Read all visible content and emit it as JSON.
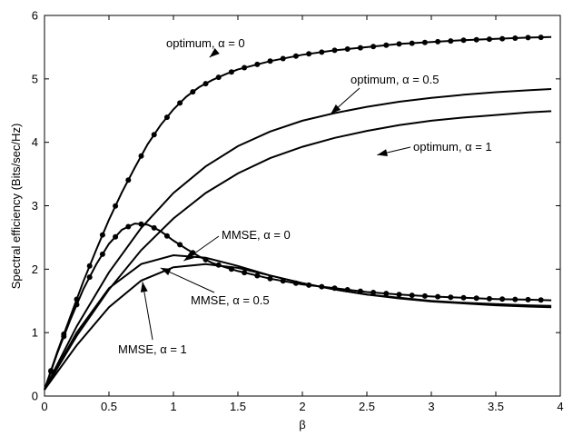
{
  "chart_data": {
    "type": "line",
    "title": "",
    "xlabel": "β",
    "ylabel": "Spectral efficiency (Bits/sec/Hz)",
    "xlim": [
      0,
      4
    ],
    "ylim": [
      0,
      6
    ],
    "x_ticks": [
      "0",
      "0.5",
      "1",
      "1.5",
      "2",
      "2.5",
      "3",
      "3.5",
      "4"
    ],
    "y_ticks": [
      "0",
      "1",
      "2",
      "3",
      "4",
      "5",
      "6"
    ],
    "grid": false,
    "colors": {
      "line": "#000000",
      "marker": "#000000",
      "background": "#ffffff"
    },
    "series": [
      {
        "name": "optimum, α = 0",
        "x": [
          0,
          0.1,
          0.2,
          0.3,
          0.4,
          0.5,
          0.6,
          0.7,
          0.8,
          0.9,
          1.0,
          1.1,
          1.2,
          1.3,
          1.4,
          1.5,
          1.75,
          2.0,
          2.25,
          2.5,
          2.75,
          3.0,
          3.25,
          3.5,
          3.75,
          3.93
        ],
        "y": [
          0.1,
          0.7,
          1.25,
          1.8,
          2.3,
          2.78,
          3.21,
          3.6,
          3.97,
          4.27,
          4.52,
          4.72,
          4.87,
          4.98,
          5.07,
          5.15,
          5.28,
          5.38,
          5.45,
          5.5,
          5.55,
          5.58,
          5.61,
          5.63,
          5.65,
          5.66
        ],
        "markers": true
      },
      {
        "name": "optimum, α = 0.5",
        "x": [
          0,
          0.25,
          0.5,
          0.75,
          1.0,
          1.25,
          1.5,
          1.75,
          2.0,
          2.25,
          2.5,
          2.75,
          3.0,
          3.25,
          3.5,
          3.75,
          3.93
        ],
        "y": [
          0.1,
          1.1,
          1.95,
          2.65,
          3.2,
          3.62,
          3.94,
          4.17,
          4.34,
          4.46,
          4.56,
          4.64,
          4.7,
          4.75,
          4.79,
          4.82,
          4.84
        ],
        "markers": false
      },
      {
        "name": "optimum, α = 1",
        "x": [
          0,
          0.25,
          0.5,
          0.75,
          1.0,
          1.25,
          1.5,
          1.75,
          2.0,
          2.25,
          2.5,
          2.75,
          3.0,
          3.25,
          3.5,
          3.75,
          3.93
        ],
        "y": [
          0.1,
          0.95,
          1.68,
          2.3,
          2.8,
          3.2,
          3.51,
          3.75,
          3.93,
          4.07,
          4.18,
          4.27,
          4.34,
          4.39,
          4.43,
          4.47,
          4.49
        ],
        "markers": false
      },
      {
        "name": "MMSE, α = 0",
        "x": [
          0,
          0.1,
          0.2,
          0.3,
          0.4,
          0.5,
          0.6,
          0.7,
          0.8,
          0.9,
          1.0,
          1.1,
          1.2,
          1.3,
          1.4,
          1.5,
          1.75,
          2.0,
          2.25,
          2.5,
          2.75,
          3.0,
          3.25,
          3.5,
          3.75,
          3.93
        ],
        "y": [
          0.1,
          0.68,
          1.2,
          1.68,
          2.07,
          2.4,
          2.62,
          2.72,
          2.7,
          2.6,
          2.45,
          2.32,
          2.2,
          2.1,
          2.03,
          1.97,
          1.85,
          1.76,
          1.7,
          1.64,
          1.6,
          1.57,
          1.55,
          1.53,
          1.52,
          1.51
        ],
        "markers": true
      },
      {
        "name": "MMSE, α = 0.5",
        "x": [
          0,
          0.25,
          0.5,
          0.75,
          1.0,
          1.25,
          1.5,
          1.75,
          2.0,
          2.25,
          2.5,
          2.75,
          3.0,
          3.25,
          3.5,
          3.75,
          3.93
        ],
        "y": [
          0.1,
          1.0,
          1.7,
          2.08,
          2.22,
          2.18,
          2.05,
          1.9,
          1.78,
          1.68,
          1.6,
          1.55,
          1.5,
          1.47,
          1.45,
          1.43,
          1.42
        ],
        "markers": false
      },
      {
        "name": "MMSE, α = 1",
        "x": [
          0,
          0.25,
          0.5,
          0.75,
          1.0,
          1.25,
          1.5,
          1.75,
          2.0,
          2.25,
          2.5,
          2.75,
          3.0,
          3.25,
          3.5,
          3.75,
          3.93
        ],
        "y": [
          0.1,
          0.8,
          1.4,
          1.82,
          2.03,
          2.08,
          2.02,
          1.9,
          1.78,
          1.68,
          1.6,
          1.54,
          1.49,
          1.46,
          1.43,
          1.41,
          1.4
        ],
        "markers": false
      }
    ],
    "annotations": [
      {
        "id": "ann-opt0",
        "text": "optimum, α = 0",
        "arrow_to": [
          1.28,
          5.34
        ]
      },
      {
        "id": "ann-opt05",
        "text": "optimum, α = 0.5",
        "arrow_to": [
          2.22,
          4.45
        ]
      },
      {
        "id": "ann-opt1",
        "text": "optimum, α = 1",
        "arrow_to": [
          2.58,
          3.8
        ]
      },
      {
        "id": "ann-mmse0",
        "text": "MMSE, α = 0",
        "arrow_to": [
          1.08,
          2.13
        ]
      },
      {
        "id": "ann-mmse05",
        "text": "MMSE, α = 0.5",
        "arrow_to": [
          0.9,
          2.02
        ]
      },
      {
        "id": "ann-mmse1",
        "text": "MMSE, α = 1",
        "arrow_to": [
          0.76,
          1.8
        ]
      }
    ]
  }
}
